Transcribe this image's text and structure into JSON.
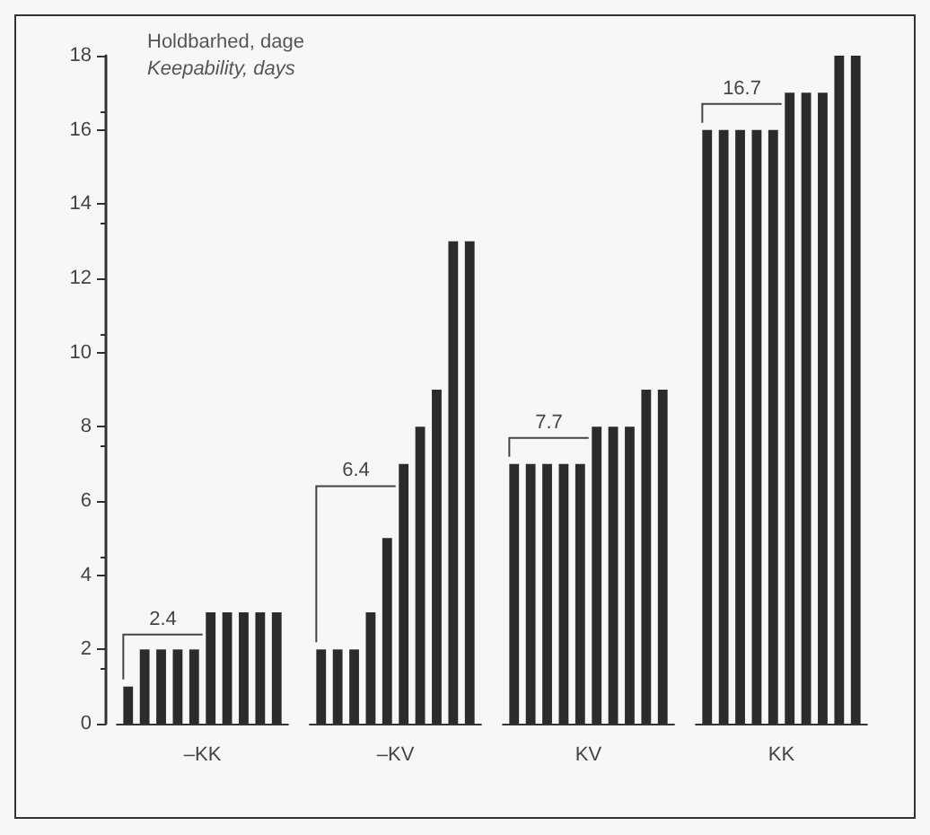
{
  "chart_data": {
    "type": "bar",
    "title": "Holdbarhed, dage",
    "subtitle": "Keepability, days",
    "categories": [
      "–KK",
      "–KV",
      "KV",
      "KK"
    ],
    "series": [
      {
        "color": "#2b2b2b",
        "values": [
          1,
          2,
          7,
          16
        ]
      },
      {
        "color": "#2b2b2b",
        "values": [
          2,
          2,
          7,
          16
        ]
      },
      {
        "color": "#2b2b2b",
        "values": [
          2,
          2,
          7,
          16
        ]
      },
      {
        "color": "#2b2b2b",
        "values": [
          2,
          3,
          7,
          16
        ]
      },
      {
        "color": "#2b2b2b",
        "values": [
          2,
          5,
          7,
          16
        ]
      },
      {
        "color": "#2b2b2b",
        "values": [
          3,
          7,
          8,
          17
        ]
      },
      {
        "color": "#2b2b2b",
        "values": [
          3,
          8,
          8,
          17
        ]
      },
      {
        "color": "#2b2b2b",
        "values": [
          3,
          9,
          8,
          17
        ]
      },
      {
        "color": "#2b2b2b",
        "values": [
          3,
          13,
          9,
          18
        ]
      },
      {
        "color": "#2b2b2b",
        "values": [
          3,
          13,
          9,
          18
        ]
      }
    ],
    "annotations": [
      {
        "text": "2.4",
        "x": "–KK",
        "y": 2.4
      },
      {
        "text": "6.4",
        "x": "–KV",
        "y": 6.4
      },
      {
        "text": "7.7",
        "x": "KV",
        "y": 7.7
      },
      {
        "text": "16.7",
        "x": "KK",
        "y": 16.7
      }
    ],
    "ylim": [
      0,
      18
    ],
    "yticks": [
      0,
      2,
      4,
      6,
      8,
      10,
      12,
      14,
      16,
      18
    ],
    "grid": false
  }
}
